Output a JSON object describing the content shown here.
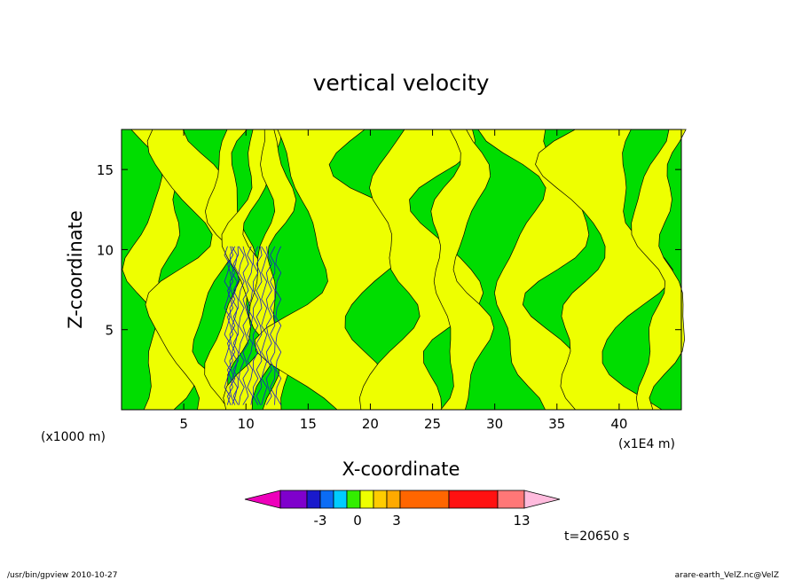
{
  "chart_data": {
    "type": "heatmap",
    "title": "vertical velocity",
    "xlabel": "X-coordinate",
    "ylabel": "Z-coordinate",
    "x_unit_left": "(x1000 m)",
    "x_unit_right": "(x1E4 m)",
    "xlim": [
      0,
      45
    ],
    "ylim": [
      0,
      17.5
    ],
    "xticks": [
      "5",
      "10",
      "15",
      "20",
      "25",
      "30",
      "35",
      "40"
    ],
    "yticks": [
      "5",
      "10",
      "15"
    ],
    "x_tick_values": [
      5,
      10,
      15,
      20,
      25,
      30,
      35,
      40
    ],
    "y_tick_values": [
      5,
      10,
      15
    ],
    "colors": {
      "negative": "#00dd00",
      "positive": "#eeff00",
      "line": "#000000"
    },
    "colorbar": {
      "colors": [
        "#ee00bb",
        "#7f00cc",
        "#1a1acc",
        "#0b6cf5",
        "#00ccff",
        "#33ee00",
        "#eeff00",
        "#ffcc00",
        "#ffaa00",
        "#ff6600",
        "#ff1111",
        "#ff7777",
        "#ffbbdd"
      ],
      "labels": [
        "-3",
        "0",
        "3",
        "13"
      ]
    },
    "time_label": "t=20650 s",
    "footer_left": "/usr/bin/gpview   2010-10-27",
    "footer_right": "arare-earth_VelZ.nc@VelZ"
  }
}
